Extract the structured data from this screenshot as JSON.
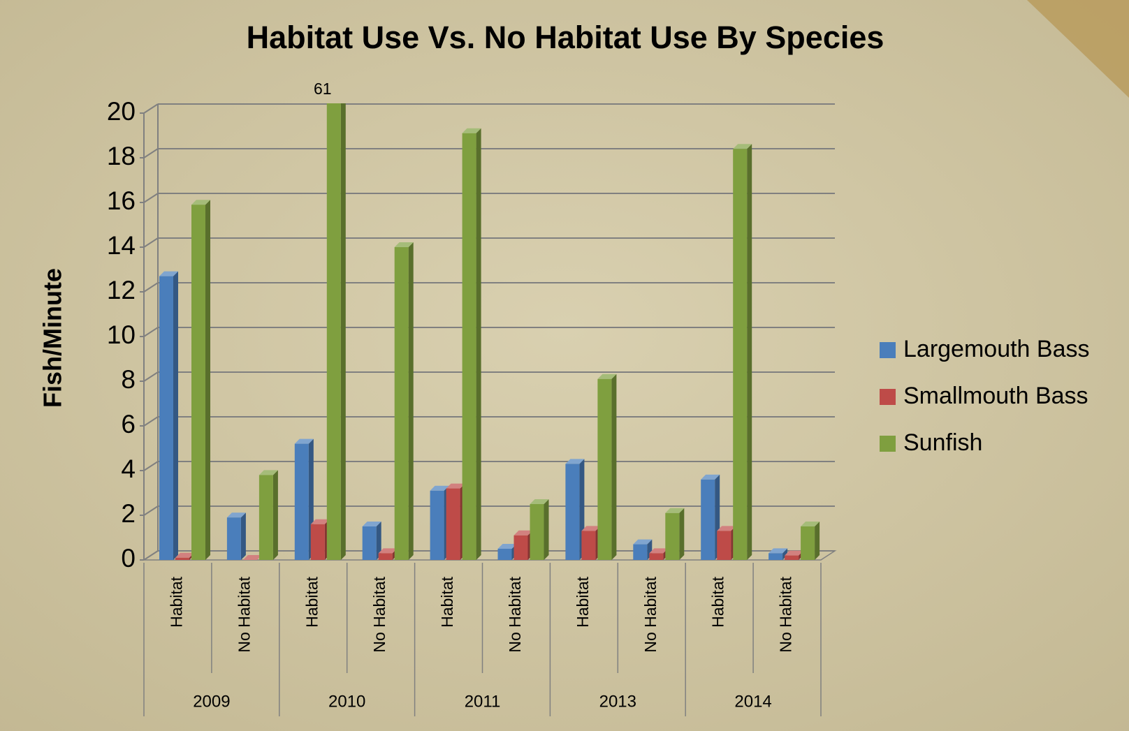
{
  "chart_data": {
    "type": "bar3d",
    "title": "Habitat Use Vs. No Habitat Use By Species",
    "ylabel": "Fish/Minute",
    "categories": [
      "Habitat",
      "No Habitat",
      "Habitat",
      "No Habitat",
      "Habitat",
      "No Habitat",
      "Habitat",
      "No Habitat",
      "Habitat",
      "No Habitat"
    ],
    "groups": [
      "2009",
      "2010",
      "2011",
      "2013",
      "2014"
    ],
    "series": [
      {
        "name": "Largemouth Bass",
        "color": "#4a7ebb",
        "values": [
          12.7,
          1.9,
          5.2,
          1.5,
          3.1,
          0.5,
          4.3,
          0.7,
          3.6,
          0.3
        ]
      },
      {
        "name": "Smallmouth Bass",
        "color": "#be4b48",
        "values": [
          0.1,
          0,
          1.6,
          0.3,
          3.2,
          1.1,
          1.3,
          0.3,
          1.3,
          0.2
        ]
      },
      {
        "name": "Sunfish",
        "color": "#7f9f3f",
        "values": [
          15.9,
          3.8,
          61,
          14.0,
          19.1,
          2.5,
          8.1,
          2.1,
          18.4,
          1.5
        ],
        "value_labels": [
          null,
          null,
          "61",
          null,
          null,
          null,
          null,
          null,
          null,
          null
        ]
      }
    ],
    "ylim": [
      0,
      20
    ],
    "yticks": [
      0,
      2,
      4,
      6,
      8,
      10,
      12,
      14,
      16,
      18,
      20
    ],
    "grid": true,
    "legend": "right"
  }
}
